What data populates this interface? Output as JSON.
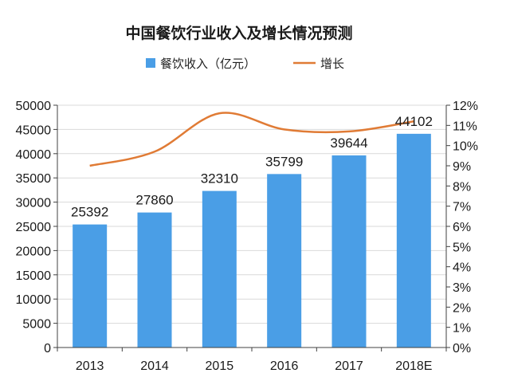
{
  "chart_data": {
    "type": "bar",
    "title": "中国餐饮行业收入及增长情况预测",
    "categories": [
      "2013",
      "2014",
      "2015",
      "2016",
      "2017",
      "2018E"
    ],
    "series": [
      {
        "name": "餐饮收入（亿元）",
        "type": "bar",
        "axis": "left",
        "values": [
          25392,
          27860,
          32310,
          35799,
          39644,
          44102
        ],
        "color": "#4a9ee6"
      },
      {
        "name": "增长",
        "type": "line",
        "axis": "right",
        "values": [
          9.0,
          9.7,
          11.6,
          10.8,
          10.7,
          11.2
        ],
        "color": "#e07b35"
      }
    ],
    "y_left": {
      "range": [
        0,
        50000
      ],
      "ticks": [
        "0",
        "5000",
        "10000",
        "15000",
        "20000",
        "25000",
        "30000",
        "35000",
        "40000",
        "45000",
        "50000"
      ]
    },
    "y_right": {
      "range": [
        0,
        12
      ],
      "ticks": [
        "0%",
        "1%",
        "2%",
        "3%",
        "4%",
        "5%",
        "6%",
        "7%",
        "8%",
        "9%",
        "10%",
        "11%",
        "12%"
      ]
    },
    "data_labels": [
      "25392",
      "27860",
      "32310",
      "35799",
      "39644",
      "44102"
    ],
    "legend_position": "top",
    "grid": true
  }
}
